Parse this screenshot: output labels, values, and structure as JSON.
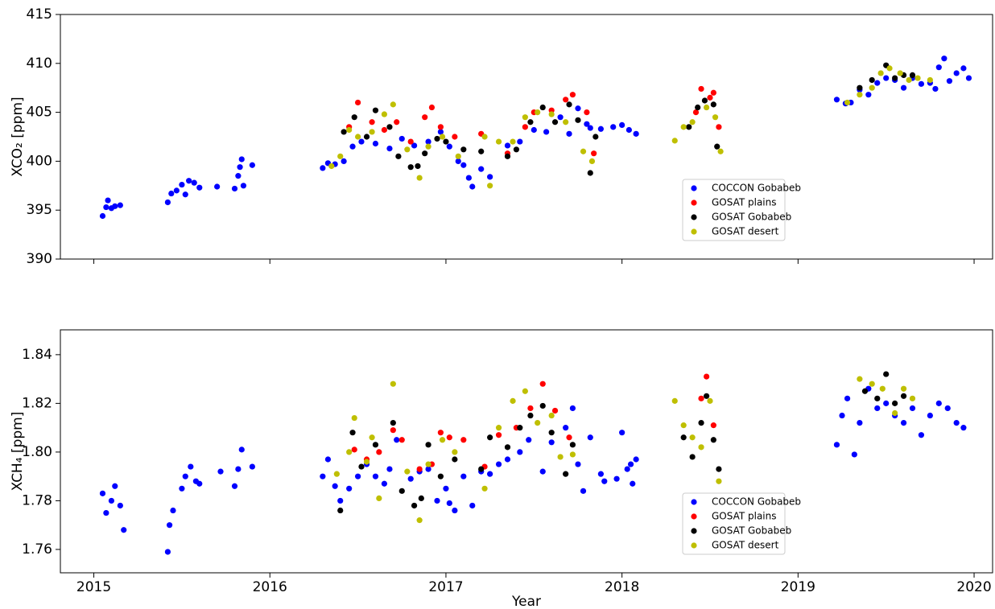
{
  "chart_data": [
    {
      "type": "scatter",
      "ylabel": "XCO₂ [ppm]",
      "xlim": [
        2014.81,
        2020.105
      ],
      "xticks": [
        2015,
        2016,
        2017,
        2018,
        2019,
        2020
      ],
      "x_tick_labels": false,
      "ylim": [
        390,
        415
      ],
      "yticks": [
        390,
        395,
        400,
        405,
        410,
        415
      ],
      "series": [
        {
          "name": "COCCON Gobabeb",
          "color": "#0000ff",
          "x": [
            2015.05,
            2015.07,
            2015.08,
            2015.1,
            2015.12,
            2015.15,
            2015.42,
            2015.44,
            2015.47,
            2015.5,
            2015.52,
            2015.54,
            2015.57,
            2015.6,
            2015.7,
            2015.8,
            2015.82,
            2015.83,
            2015.84,
            2015.85,
            2015.9,
            2016.3,
            2016.33,
            2016.37,
            2016.42,
            2016.47,
            2016.52,
            2016.6,
            2016.68,
            2016.75,
            2016.82,
            2016.9,
            2016.97,
            2017.02,
            2017.07,
            2017.1,
            2017.13,
            2017.15,
            2017.2,
            2017.25,
            2017.35,
            2017.42,
            2017.5,
            2017.57,
            2017.65,
            2017.7,
            2017.75,
            2017.8,
            2017.82,
            2017.88,
            2017.95,
            2018.0,
            2018.04,
            2018.08,
            2019.22,
            2019.27,
            2019.3,
            2019.35,
            2019.4,
            2019.45,
            2019.5,
            2019.55,
            2019.6,
            2019.65,
            2019.7,
            2019.75,
            2019.78,
            2019.8,
            2019.83,
            2019.86,
            2019.9,
            2019.94,
            2019.97
          ],
          "values": [
            394.4,
            395.3,
            396.0,
            395.2,
            395.4,
            395.5,
            395.8,
            396.7,
            397.0,
            397.6,
            396.6,
            398.0,
            397.8,
            397.3,
            397.4,
            397.2,
            398.5,
            399.4,
            400.2,
            397.5,
            399.6,
            399.3,
            399.8,
            399.7,
            400.0,
            401.5,
            402.0,
            401.8,
            401.3,
            402.3,
            401.6,
            402.0,
            403.0,
            401.5,
            400.0,
            399.6,
            398.3,
            397.4,
            399.2,
            398.4,
            401.6,
            402.0,
            403.2,
            403.0,
            404.5,
            402.8,
            405.4,
            403.8,
            403.4,
            403.3,
            403.5,
            403.7,
            403.2,
            402.8,
            406.3,
            405.9,
            406.0,
            407.3,
            406.8,
            408.0,
            408.5,
            408.3,
            407.5,
            408.5,
            407.9,
            408.0,
            407.4,
            409.6,
            410.5,
            408.2,
            409.0,
            409.5,
            408.5
          ]
        },
        {
          "name": "GOSAT plains",
          "color": "#ff0000",
          "x": [
            2016.45,
            2016.5,
            2016.58,
            2016.65,
            2016.72,
            2016.8,
            2016.88,
            2016.92,
            2016.97,
            2017.05,
            2017.2,
            2017.35,
            2017.45,
            2017.5,
            2017.6,
            2017.68,
            2017.72,
            2017.8,
            2017.84,
            2018.42,
            2018.45,
            2018.5,
            2018.52,
            2018.55
          ],
          "values": [
            403.5,
            406.0,
            404.0,
            403.2,
            404.0,
            402.0,
            404.5,
            405.5,
            403.5,
            402.5,
            402.8,
            400.8,
            403.5,
            405.0,
            405.2,
            406.3,
            406.8,
            405.0,
            400.8,
            405.0,
            407.4,
            406.5,
            407.0,
            403.5
          ]
        },
        {
          "name": "GOSAT Gobabeb",
          "color": "#000000",
          "x": [
            2016.42,
            2016.48,
            2016.55,
            2016.6,
            2016.68,
            2016.73,
            2016.8,
            2016.84,
            2016.88,
            2016.95,
            2017.0,
            2017.1,
            2017.2,
            2017.35,
            2017.4,
            2017.48,
            2017.55,
            2017.62,
            2017.7,
            2017.75,
            2017.82,
            2017.85,
            2018.38,
            2018.43,
            2018.47,
            2018.52,
            2018.54,
            2019.35,
            2019.42,
            2019.5,
            2019.55,
            2019.6,
            2019.65
          ],
          "values": [
            403.0,
            404.5,
            402.5,
            405.2,
            403.5,
            400.5,
            399.4,
            399.5,
            400.8,
            402.3,
            402.0,
            401.2,
            401.0,
            400.5,
            401.2,
            404.0,
            405.5,
            404.0,
            405.8,
            404.2,
            398.8,
            402.5,
            403.5,
            405.5,
            406.2,
            405.8,
            401.5,
            407.5,
            408.3,
            409.8,
            408.5,
            408.8,
            408.8
          ]
        },
        {
          "name": "GOSAT desert",
          "color": "#bfbf00",
          "x": [
            2016.35,
            2016.4,
            2016.45,
            2016.5,
            2016.58,
            2016.65,
            2016.7,
            2016.78,
            2016.85,
            2016.9,
            2016.98,
            2017.07,
            2017.22,
            2017.25,
            2017.3,
            2017.38,
            2017.45,
            2017.52,
            2017.6,
            2017.68,
            2017.78,
            2017.83,
            2018.3,
            2018.35,
            2018.4,
            2018.48,
            2018.53,
            2018.56,
            2019.28,
            2019.35,
            2019.42,
            2019.47,
            2019.52,
            2019.58,
            2019.63,
            2019.68,
            2019.75
          ],
          "values": [
            399.5,
            400.5,
            403.2,
            402.5,
            403.0,
            404.8,
            405.8,
            401.2,
            398.3,
            401.5,
            402.5,
            400.5,
            402.5,
            397.5,
            402.0,
            402.0,
            404.5,
            405.0,
            404.8,
            404.0,
            401.0,
            400.0,
            402.1,
            403.5,
            404.0,
            405.5,
            404.5,
            401.0,
            406.0,
            406.8,
            407.5,
            409.0,
            409.5,
            409.0,
            408.3,
            408.5,
            408.3
          ]
        }
      ]
    },
    {
      "type": "scatter",
      "ylabel": "XCH₄ [ppm]",
      "xlabel": "Year",
      "xlim": [
        2014.81,
        2020.105
      ],
      "xticks": [
        2015,
        2016,
        2017,
        2018,
        2019,
        2020
      ],
      "ylim": [
        1.7504,
        1.8502
      ],
      "yticks": [
        1.76,
        1.78,
        {
          "value": 1.8,
          "label": "1.80"
        },
        1.82,
        1.84
      ],
      "series": [
        {
          "name": "COCCON Gobabeb",
          "color": "#0000ff",
          "x": [
            2015.05,
            2015.07,
            2015.1,
            2015.12,
            2015.15,
            2015.17,
            2015.42,
            2015.43,
            2015.45,
            2015.5,
            2015.52,
            2015.55,
            2015.58,
            2015.6,
            2015.72,
            2015.8,
            2015.82,
            2015.84,
            2015.9,
            2016.3,
            2016.33,
            2016.37,
            2016.4,
            2016.45,
            2016.5,
            2016.55,
            2016.6,
            2016.65,
            2016.68,
            2016.72,
            2016.8,
            2016.85,
            2016.9,
            2016.95,
            2017.0,
            2017.02,
            2017.05,
            2017.1,
            2017.15,
            2017.2,
            2017.25,
            2017.3,
            2017.35,
            2017.42,
            2017.47,
            2017.55,
            2017.6,
            2017.68,
            2017.72,
            2017.75,
            2017.78,
            2017.82,
            2017.88,
            2017.9,
            2017.97,
            2018.0,
            2018.03,
            2018.05,
            2018.06,
            2018.08,
            2019.22,
            2019.25,
            2019.28,
            2019.32,
            2019.35,
            2019.4,
            2019.45,
            2019.5,
            2019.55,
            2019.6,
            2019.65,
            2019.7,
            2019.75,
            2019.8,
            2019.85,
            2019.9,
            2019.94
          ],
          "values": [
            1.783,
            1.775,
            1.78,
            1.786,
            1.778,
            1.768,
            1.759,
            1.77,
            1.776,
            1.785,
            1.79,
            1.794,
            1.788,
            1.787,
            1.792,
            1.786,
            1.793,
            1.801,
            1.794,
            1.79,
            1.797,
            1.786,
            1.78,
            1.785,
            1.79,
            1.795,
            1.79,
            1.787,
            1.793,
            1.805,
            1.789,
            1.792,
            1.793,
            1.78,
            1.785,
            1.779,
            1.776,
            1.79,
            1.778,
            1.792,
            1.791,
            1.795,
            1.797,
            1.8,
            1.805,
            1.792,
            1.804,
            1.81,
            1.818,
            1.795,
            1.784,
            1.806,
            1.791,
            1.788,
            1.789,
            1.808,
            1.793,
            1.795,
            1.787,
            1.797,
            1.803,
            1.815,
            1.822,
            1.799,
            1.812,
            1.826,
            1.818,
            1.82,
            1.815,
            1.812,
            1.818,
            1.807,
            1.815,
            1.82,
            1.818,
            1.812,
            1.81
          ]
        },
        {
          "name": "GOSAT plains",
          "color": "#ff0000",
          "x": [
            2016.48,
            2016.55,
            2016.62,
            2016.7,
            2016.75,
            2016.85,
            2016.92,
            2016.97,
            2017.02,
            2017.1,
            2017.22,
            2017.3,
            2017.4,
            2017.48,
            2017.55,
            2017.62,
            2017.7,
            2018.45,
            2018.48,
            2018.52
          ],
          "values": [
            1.801,
            1.797,
            1.8,
            1.809,
            1.805,
            1.793,
            1.795,
            1.808,
            1.806,
            1.805,
            1.794,
            1.807,
            1.81,
            1.818,
            1.828,
            1.817,
            1.806,
            1.822,
            1.831,
            1.811
          ]
        },
        {
          "name": "GOSAT Gobabeb",
          "color": "#000000",
          "x": [
            2016.4,
            2016.47,
            2016.52,
            2016.6,
            2016.7,
            2016.75,
            2016.82,
            2016.86,
            2016.9,
            2016.97,
            2017.05,
            2017.2,
            2017.25,
            2017.35,
            2017.42,
            2017.48,
            2017.55,
            2017.6,
            2017.68,
            2017.72,
            2018.35,
            2018.4,
            2018.45,
            2018.48,
            2018.52,
            2018.55,
            2019.38,
            2019.45,
            2019.5,
            2019.55,
            2019.6
          ],
          "values": [
            1.776,
            1.808,
            1.794,
            1.803,
            1.812,
            1.784,
            1.778,
            1.781,
            1.803,
            1.79,
            1.797,
            1.793,
            1.806,
            1.802,
            1.81,
            1.815,
            1.819,
            1.808,
            1.791,
            1.803,
            1.806,
            1.798,
            1.812,
            1.823,
            1.805,
            1.793,
            1.825,
            1.822,
            1.832,
            1.82,
            1.823
          ]
        },
        {
          "name": "GOSAT desert",
          "color": "#bfbf00",
          "x": [
            2016.38,
            2016.45,
            2016.48,
            2016.55,
            2016.58,
            2016.62,
            2016.7,
            2016.78,
            2016.85,
            2016.9,
            2016.98,
            2017.05,
            2017.22,
            2017.3,
            2017.38,
            2017.45,
            2017.52,
            2017.6,
            2017.65,
            2017.72,
            2018.3,
            2018.35,
            2018.4,
            2018.45,
            2018.5,
            2018.55,
            2019.35,
            2019.42,
            2019.48,
            2019.55,
            2019.6,
            2019.65
          ],
          "values": [
            1.791,
            1.8,
            1.814,
            1.796,
            1.806,
            1.781,
            1.828,
            1.792,
            1.772,
            1.795,
            1.805,
            1.8,
            1.785,
            1.81,
            1.821,
            1.825,
            1.812,
            1.815,
            1.798,
            1.799,
            1.821,
            1.811,
            1.806,
            1.802,
            1.821,
            1.788,
            1.83,
            1.828,
            1.826,
            1.816,
            1.826,
            1.822
          ]
        }
      ]
    }
  ]
}
